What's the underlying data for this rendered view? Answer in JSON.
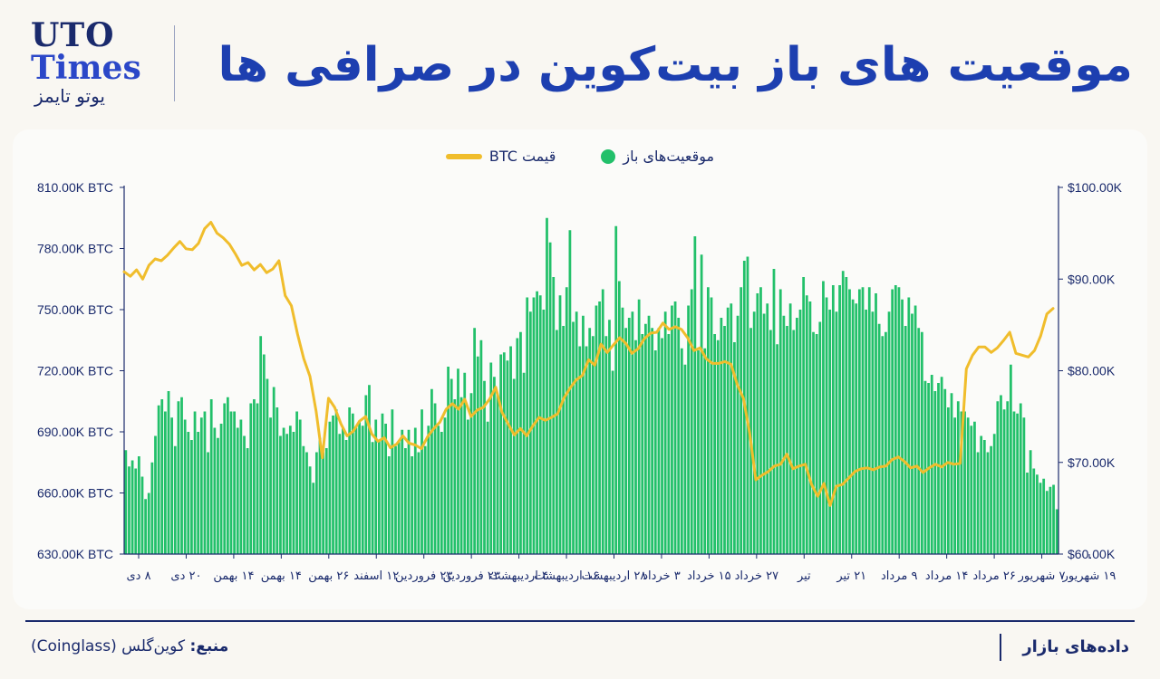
{
  "logo": {
    "line1": "UTO",
    "line2": "Times",
    "line3": "یوتو تایمز"
  },
  "title": "موقعیت های باز بیت‌کوین در صرافی ها",
  "footer": {
    "section": "داده‌های بازار",
    "source_label": "منبع:",
    "source_text": "کوین‌گلس (Coinglass)"
  },
  "colors": {
    "bars": "#22c06a",
    "price": "#f0bd2c",
    "title": "#1d3fb0",
    "text": "#1a2a6c"
  },
  "chart_data": {
    "type": "bar",
    "legend": [
      {
        "name": "موقعیت‌های باز",
        "marker": "dot",
        "color": "#22c06a"
      },
      {
        "name": "قیمت BTC",
        "marker": "line",
        "color": "#f0bd2c"
      }
    ],
    "y_left": {
      "label": "",
      "ylim": [
        630000,
        810000
      ],
      "ticks": [
        "630.00K BTC",
        "660.00K BTC",
        "690.00K BTC",
        "720.00K BTC",
        "750.00K BTC",
        "780.00K BTC",
        "810.00K BTC"
      ]
    },
    "y_right": {
      "label": "",
      "ylim": [
        60000,
        100000
      ],
      "ticks": [
        "$60.00K",
        "$70.00K",
        "$80.00K",
        "$90.00K",
        "$100.00K"
      ]
    },
    "x_ticks": [
      "۸ دی",
      "۲۰ دی",
      "۱۴ بهمن",
      "۱۴ بهمن",
      "۲۶ بهمن",
      "۱۲ اسفند",
      "۲۳ فروردین",
      "۲۳ فروردین",
      "۴ اردیبهشت",
      "۱۶ اردیبهشت",
      "۲۸ اردیبهشت",
      "۳ خرداد",
      "۱۵ خرداد",
      "۲۷ خرداد",
      "تیر",
      "۲۱ تیر",
      "۹ مرداد",
      "۱۴ مرداد",
      "۲۶ مرداد",
      "۷ شهریور",
      "۱۹ شهریور"
    ],
    "series": [
      {
        "name": "موقعیت‌های باز",
        "type": "bar",
        "axis": "left",
        "values": [
          681,
          673,
          676,
          672,
          678,
          668,
          657,
          660,
          675,
          688,
          703,
          706,
          700,
          710,
          697,
          683,
          705,
          707,
          696,
          690,
          686,
          700,
          690,
          697,
          700,
          680,
          706,
          692,
          687,
          694,
          704,
          707,
          700,
          700,
          692,
          696,
          688,
          682,
          704,
          706,
          704,
          737,
          728,
          716,
          697,
          712,
          702,
          688,
          692,
          689,
          693,
          690,
          700,
          696,
          683,
          680,
          673,
          665,
          680,
          687,
          680,
          682,
          695,
          698,
          701,
          689,
          692,
          686,
          702,
          699,
          692,
          695,
          693,
          708,
          713,
          685,
          696,
          686,
          699,
          694,
          678,
          701,
          683,
          685,
          691,
          682,
          691,
          678,
          692,
          680,
          701,
          683,
          693,
          711,
          704,
          693,
          690,
          697,
          722,
          716,
          706,
          721,
          707,
          719,
          696,
          709,
          741,
          727,
          735,
          715,
          695,
          724,
          717,
          708,
          728,
          729,
          725,
          732,
          716,
          736,
          739,
          719,
          756,
          749,
          756,
          759,
          757,
          750,
          795,
          783,
          766,
          740,
          757,
          742,
          761,
          789,
          744,
          749,
          732,
          747,
          732,
          741,
          737,
          752,
          754,
          760,
          737,
          745,
          720,
          791,
          764,
          751,
          741,
          746,
          749,
          735,
          755,
          738,
          743,
          747,
          741,
          730,
          741,
          736,
          749,
          738,
          752,
          754,
          746,
          731,
          723,
          752,
          760,
          786,
          730,
          777,
          731,
          761,
          756,
          738,
          735,
          746,
          742,
          751,
          753,
          734,
          747,
          761,
          774,
          776,
          741,
          749,
          758,
          761,
          748,
          753,
          740,
          770,
          733,
          760,
          747,
          742,
          753,
          740,
          746,
          750,
          766,
          757,
          754,
          739,
          738,
          744,
          764,
          756,
          750,
          762,
          749,
          762,
          769,
          766,
          760,
          755,
          753,
          760,
          761,
          750,
          761,
          749,
          758,
          743,
          737,
          739,
          749,
          760,
          762,
          761,
          755,
          742,
          756,
          748,
          752,
          741,
          739,
          715,
          714,
          718,
          710,
          714,
          717,
          711,
          702,
          709,
          697,
          705,
          700,
          700,
          697,
          693,
          695,
          680,
          688,
          686,
          680,
          683,
          689,
          705,
          708,
          701,
          705,
          723,
          700,
          699,
          704,
          697,
          670,
          681,
          672,
          669,
          665,
          667,
          661,
          663,
          664,
          652
        ]
      },
      {
        "name": "قیمت BTC",
        "type": "line",
        "axis": "right",
        "x": [
          0,
          2,
          4,
          6,
          8,
          10,
          12,
          14,
          16,
          18,
          20,
          22,
          24,
          26,
          28,
          30,
          32,
          34,
          36,
          38,
          40,
          42,
          44,
          46,
          48,
          50,
          52,
          54,
          56,
          58,
          60,
          62,
          64,
          66,
          68,
          70,
          72,
          74,
          76,
          78,
          80,
          82,
          84,
          86,
          88,
          90,
          92,
          94,
          96,
          98,
          100,
          102,
          104,
          106,
          108,
          110,
          112,
          114,
          116,
          118,
          120,
          122,
          124,
          126,
          128,
          130,
          132,
          134,
          136,
          138,
          140,
          142,
          144,
          146,
          148,
          150,
          152,
          154,
          156,
          158,
          160,
          162,
          164,
          166,
          168,
          170,
          172,
          174,
          176,
          178,
          180,
          182,
          184,
          186,
          188,
          190,
          192,
          194,
          196,
          198,
          200,
          202,
          204,
          206,
          208,
          210,
          212,
          214,
          216,
          218,
          220,
          222,
          224,
          226,
          228,
          230,
          232,
          234,
          236,
          238,
          240,
          242,
          244,
          246,
          248,
          250,
          252,
          254,
          256,
          258,
          260,
          262,
          264,
          266,
          268,
          270,
          272,
          274,
          276,
          278,
          280,
          282,
          284,
          286,
          288,
          290,
          292,
          294,
          296,
          298,
          300
        ],
        "values": [
          90.8,
          90.3,
          91.0,
          90.0,
          91.5,
          92.2,
          92.0,
          92.6,
          93.4,
          94.1,
          93.3,
          93.2,
          93.9,
          95.5,
          96.2,
          95.0,
          94.5,
          93.8,
          92.7,
          91.5,
          91.8,
          91.0,
          91.6,
          90.7,
          91.1,
          92.0,
          88.2,
          87.1,
          84.0,
          81.3,
          79.4,
          75.6,
          70.5,
          77.0,
          76.0,
          74.2,
          72.9,
          73.4,
          74.5,
          75.0,
          73.1,
          72.3,
          72.7,
          71.6,
          72.0,
          72.9,
          72.1,
          71.9,
          71.5,
          72.8,
          73.7,
          74.4,
          75.8,
          76.4,
          75.8,
          76.9,
          75.0,
          75.7,
          76.0,
          76.9,
          78.2,
          75.5,
          74.2,
          73.0,
          73.7,
          72.9,
          74.0,
          74.9,
          74.6,
          74.9,
          75.3,
          77.0,
          78.1,
          79.0,
          79.5,
          81.2,
          80.6,
          82.9,
          82.0,
          82.8,
          83.6,
          83.0,
          81.9,
          82.4,
          83.5,
          84.1,
          84.2,
          85.2,
          84.5,
          84.8,
          84.5,
          83.6,
          82.2,
          82.5,
          81.3,
          80.8,
          80.8,
          81.0,
          80.7,
          78.5,
          77.0,
          73.2,
          68.1,
          68.6,
          69.0,
          69.6,
          69.8,
          70.9,
          69.3,
          69.6,
          69.8,
          67.6,
          66.3,
          67.7,
          65.3,
          67.4,
          67.6,
          68.3,
          69.0,
          69.3,
          69.4,
          69.2,
          69.5,
          69.6,
          70.3,
          70.6,
          70.1,
          69.4,
          69.6,
          68.9,
          69.4,
          69.8,
          69.5,
          70.0,
          69.8,
          69.9,
          80.2,
          81.7,
          82.6,
          82.6,
          82.0,
          82.5,
          83.3,
          84.2,
          81.9,
          81.7,
          81.5,
          82.2,
          83.8,
          86.2,
          86.8
        ]
      }
    ]
  }
}
